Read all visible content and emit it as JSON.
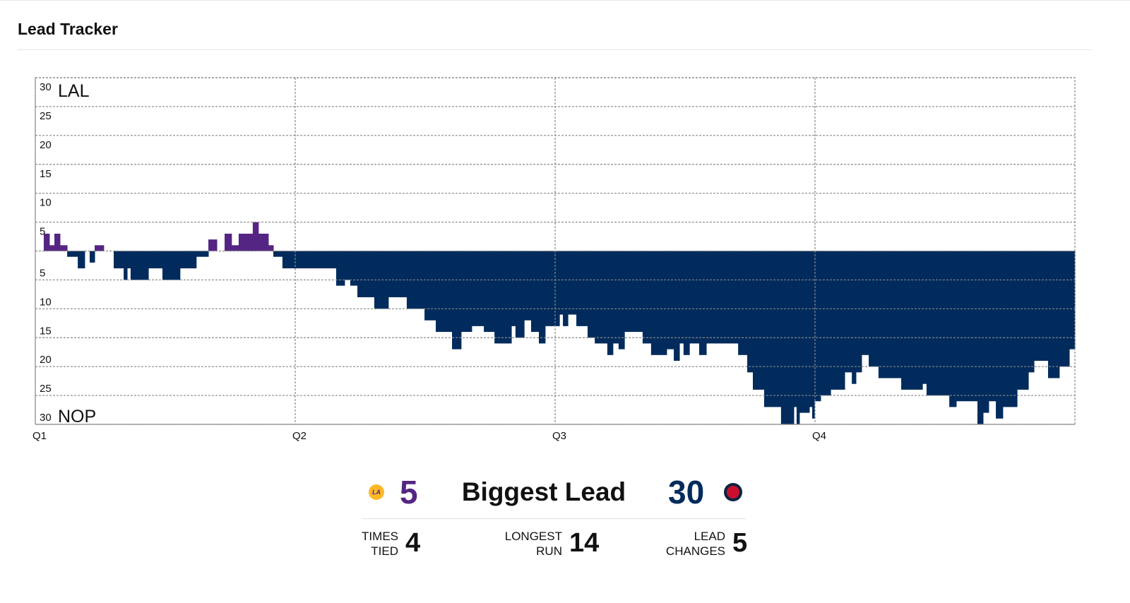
{
  "header": {
    "title": "Lead Tracker"
  },
  "chart_data": {
    "type": "step",
    "x": [
      0,
      0.39,
      0.65,
      0.88,
      1.14,
      1.47,
      1.96,
      2.28,
      2.51,
      2.74,
      3.16,
      3.62,
      4.08,
      4.24,
      4.4,
      5.22,
      5.87,
      6.68,
      7.43,
      7.99,
      8.38,
      8.74,
      9.06,
      9.39,
      10.04,
      10.3,
      10.76,
      10.99,
      11.41,
      13.89,
      14.28,
      14.54,
      14.87,
      15.65,
      16.3,
      17.15,
      17.97,
      18.49,
      19.24,
      19.66,
      20.15,
      20.71,
      21.2,
      21.98,
      22.17,
      22.57,
      22.89,
      23.25,
      23.54,
      24.2,
      24.36,
      24.59,
      24.98,
      25.5,
      25.83,
      26.41,
      26.67,
      26.93,
      27.2,
      28.04,
      28.43,
      29.15,
      29.48,
      29.74,
      29.93,
      30.2,
      30.65,
      30.98,
      32.45,
      32.87,
      33.13,
      33.65,
      34.43,
      35.02,
      35.15,
      35.28,
      35.74,
      35.87,
      35.97,
      36.26,
      36.72,
      37.37,
      37.7,
      37.89,
      38.15,
      38.48,
      38.93,
      39.98,
      40.96,
      41.15,
      42.2,
      42.52,
      43.5,
      43.76,
      44.02,
      44.35,
      44.67,
      45.33,
      45.85,
      46.11,
      46.76,
      47.28,
      47.74
    ],
    "values": [
      0,
      3,
      1,
      3,
      1,
      -1,
      -3,
      0,
      -2,
      1,
      0,
      -3,
      -5,
      -3,
      -5,
      -3,
      -5,
      -3,
      -1,
      2,
      0,
      3,
      1,
      3,
      5,
      3,
      1,
      -1,
      -3,
      -6,
      -5,
      -6,
      -8,
      -10,
      -8,
      -10,
      -12,
      -14,
      -17,
      -14,
      -13,
      -14,
      -16,
      -13,
      -15,
      -12,
      -14,
      -16,
      -13,
      -11,
      -13,
      -11,
      -13,
      -15,
      -16,
      -18,
      -16,
      -17,
      -14,
      -16,
      -18,
      -17,
      -19,
      -16,
      -18,
      -16,
      -18,
      -16,
      -18,
      -21,
      -24,
      -27,
      -30,
      -27,
      -30,
      -28,
      -27,
      -29,
      -26,
      -25,
      -24,
      -21,
      -23,
      -21,
      -18,
      -20,
      -22,
      -24,
      -23,
      -25,
      -27,
      -26,
      -30,
      -28,
      -26,
      -29,
      -27,
      -24,
      -21,
      -19,
      -22,
      -20,
      -17
    ],
    "xlim": [
      0,
      48
    ],
    "ylim": [
      -30,
      30
    ],
    "xticks": [
      {
        "value": 0,
        "label": "Q1"
      },
      {
        "value": 12,
        "label": "Q2"
      },
      {
        "value": 24,
        "label": "Q3"
      },
      {
        "value": 36,
        "label": "Q4"
      }
    ],
    "yticks": [
      30,
      25,
      20,
      15,
      10,
      5,
      {
        "value": -5,
        "label": "5"
      },
      {
        "value": -10,
        "label": "10"
      },
      {
        "value": -15,
        "label": "15"
      },
      {
        "value": -20,
        "label": "20"
      },
      {
        "value": -25,
        "label": "25"
      },
      {
        "value": -30,
        "label": "30"
      }
    ],
    "top_label": "LAL",
    "bottom_label": "NOP",
    "positive_color": "#552583",
    "negative_color": "#002B5C",
    "grid": true
  },
  "summary": {
    "title": "Biggest Lead",
    "teams": [
      {
        "value": 5,
        "color": "#552583"
      },
      {
        "value": 30,
        "color": "#002B5C"
      }
    ],
    "stats": [
      {
        "label": "TIMES TIED",
        "value": 4
      },
      {
        "label": "LONGEST RUN",
        "value": 14
      },
      {
        "label": "LEAD CHANGES",
        "value": 5
      }
    ]
  }
}
